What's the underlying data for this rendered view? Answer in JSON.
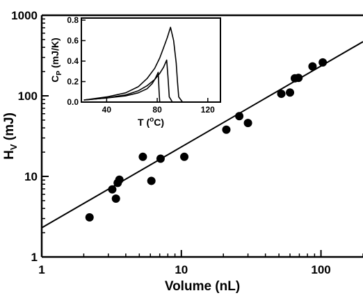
{
  "chart_data": [
    {
      "type": "scatter",
      "x_scale": "log",
      "y_scale": "log",
      "xlim": [
        1,
        200
      ],
      "ylim": [
        1,
        1000
      ],
      "xlabel": "Volume (nL)",
      "ylabel_main": "H",
      "ylabel_sub": "V",
      "ylabel_unit": " (mJ)",
      "x_ticks": [
        {
          "value": 1,
          "label": "1"
        },
        {
          "value": 10,
          "label": "10"
        },
        {
          "value": 100,
          "label": "100"
        }
      ],
      "y_ticks": [
        {
          "value": 1,
          "label": "1"
        },
        {
          "value": 10,
          "label": "10"
        },
        {
          "value": 100,
          "label": "100"
        },
        {
          "value": 1000,
          "label": "1000"
        }
      ],
      "points": [
        {
          "x": 2.2,
          "y": 3.1
        },
        {
          "x": 3.2,
          "y": 6.9
        },
        {
          "x": 3.4,
          "y": 5.3
        },
        {
          "x": 3.5,
          "y": 8.3
        },
        {
          "x": 3.6,
          "y": 9.1
        },
        {
          "x": 5.3,
          "y": 17.5
        },
        {
          "x": 6.1,
          "y": 8.8
        },
        {
          "x": 7.1,
          "y": 16.6
        },
        {
          "x": 10.5,
          "y": 17.5
        },
        {
          "x": 21,
          "y": 38
        },
        {
          "x": 26,
          "y": 56
        },
        {
          "x": 30,
          "y": 46
        },
        {
          "x": 52,
          "y": 106
        },
        {
          "x": 60,
          "y": 110
        },
        {
          "x": 65,
          "y": 165
        },
        {
          "x": 69,
          "y": 167
        },
        {
          "x": 87,
          "y": 232
        },
        {
          "x": 103,
          "y": 260
        }
      ],
      "fit_line": {
        "x": [
          1,
          200
        ],
        "y": [
          2.3,
          470
        ]
      }
    },
    {
      "type": "line",
      "xlim": [
        20,
        130
      ],
      "ylim": [
        0,
        0.82
      ],
      "xlabel_main": "T (",
      "xlabel_sup": "o",
      "xlabel_unit": "C)",
      "ylabel_main": "C",
      "ylabel_sub": "P",
      "ylabel_unit": " (mJ/K)",
      "x_ticks": [
        {
          "value": 40,
          "label": "40"
        },
        {
          "value": 80,
          "label": "80"
        },
        {
          "value": 120,
          "label": "120"
        }
      ],
      "y_ticks": [
        {
          "value": 0.0,
          "label": "0.0"
        },
        {
          "value": 0.2,
          "label": "0.2"
        },
        {
          "value": 0.4,
          "label": "0.4"
        },
        {
          "value": 0.6,
          "label": "0.6"
        },
        {
          "value": 0.8,
          "label": "0.8"
        }
      ],
      "series": [
        {
          "x": [
            22,
            40,
            55,
            65,
            72,
            76,
            78,
            80,
            80.8,
            81.5,
            82,
            90,
            100,
            110,
            130
          ],
          "y": [
            0.02,
            0.04,
            0.06,
            0.09,
            0.13,
            0.18,
            0.22,
            0.27,
            0.29,
            0.1,
            0.0,
            0.0,
            0.0,
            0.0,
            0.0
          ]
        },
        {
          "x": [
            22,
            40,
            55,
            65,
            72,
            78,
            82,
            85,
            87.5,
            88.5,
            89.5,
            92,
            100,
            110,
            130
          ],
          "y": [
            0.02,
            0.04,
            0.07,
            0.11,
            0.16,
            0.22,
            0.28,
            0.34,
            0.41,
            0.25,
            0.05,
            0.0,
            0.0,
            0.0,
            0.0
          ]
        },
        {
          "x": [
            22,
            40,
            55,
            65,
            72,
            78,
            82,
            85,
            88,
            90.5,
            93,
            95,
            96,
            97,
            100,
            130
          ],
          "y": [
            0.02,
            0.05,
            0.09,
            0.15,
            0.23,
            0.33,
            0.43,
            0.53,
            0.63,
            0.73,
            0.6,
            0.38,
            0.2,
            0.05,
            0.0,
            0.0
          ]
        }
      ]
    }
  ]
}
